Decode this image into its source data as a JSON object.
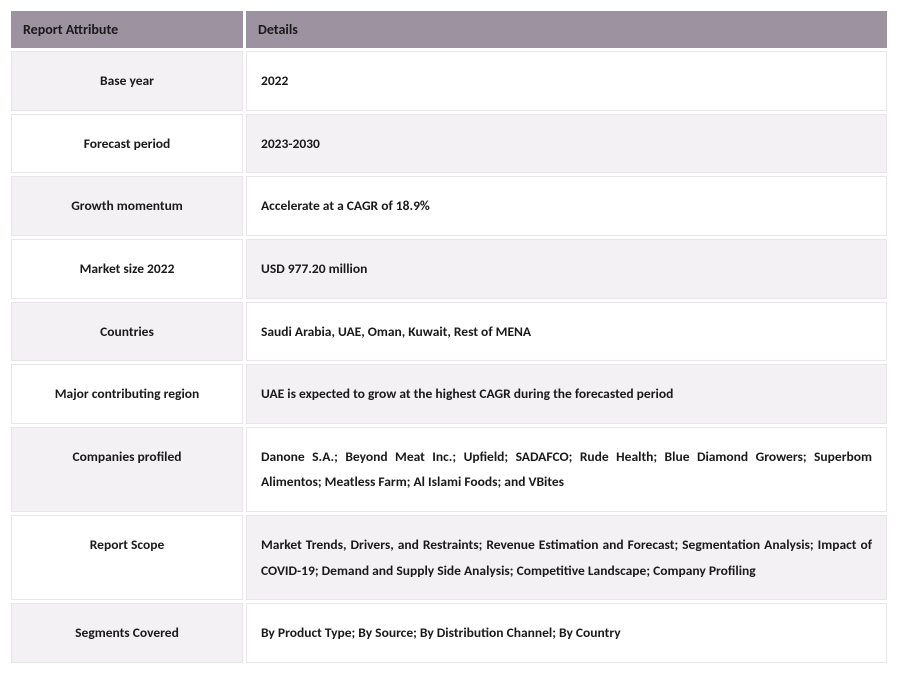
{
  "table": {
    "header_bg": "#9c92a0",
    "odd_attr_bg": "#f3f1f4",
    "even_attr_bg": "#ffffff",
    "odd_detail_bg": "#ffffff",
    "even_detail_bg": "#f3f1f4",
    "border_color": "#e8e6e9",
    "text_color": "#1a1a1a",
    "font_size_header": 14,
    "font_size_body": 13.5,
    "columns": [
      "Report Attribute",
      "Details"
    ],
    "rows": [
      {
        "attr": "Base year",
        "detail": "2022",
        "justify": false
      },
      {
        "attr": "Forecast period",
        "detail": "2023-2030",
        "justify": false
      },
      {
        "attr": "Growth momentum",
        "detail": "Accelerate at a CAGR of 18.9%",
        "justify": false
      },
      {
        "attr": "Market size 2022",
        "detail": "USD 977.20 million",
        "justify": false
      },
      {
        "attr": "Countries",
        "detail": "Saudi Arabia, UAE, Oman, Kuwait, Rest of MENA",
        "justify": false
      },
      {
        "attr": "Major contributing region",
        "detail": "UAE is expected to grow at the highest CAGR during the forecasted period",
        "justify": false
      },
      {
        "attr": "Companies profiled",
        "detail": "Danone S.A.; Beyond Meat Inc.; Upfield; SADAFCO; Rude Health; Blue Diamond Growers; Superbom Alimentos; Meatless Farm; Al Islami Foods; and VBites",
        "justify": true
      },
      {
        "attr": "Report Scope",
        "detail": "Market Trends, Drivers, and Restraints; Revenue Estimation and Forecast; Segmentation Analysis; Impact of COVID-19; Demand and Supply Side Analysis; Competitive Landscape; Company Profiling",
        "justify": true
      },
      {
        "attr": "Segments Covered",
        "detail": "By Product Type; By Source; By Distribution Channel; By Country",
        "justify": false
      }
    ]
  }
}
